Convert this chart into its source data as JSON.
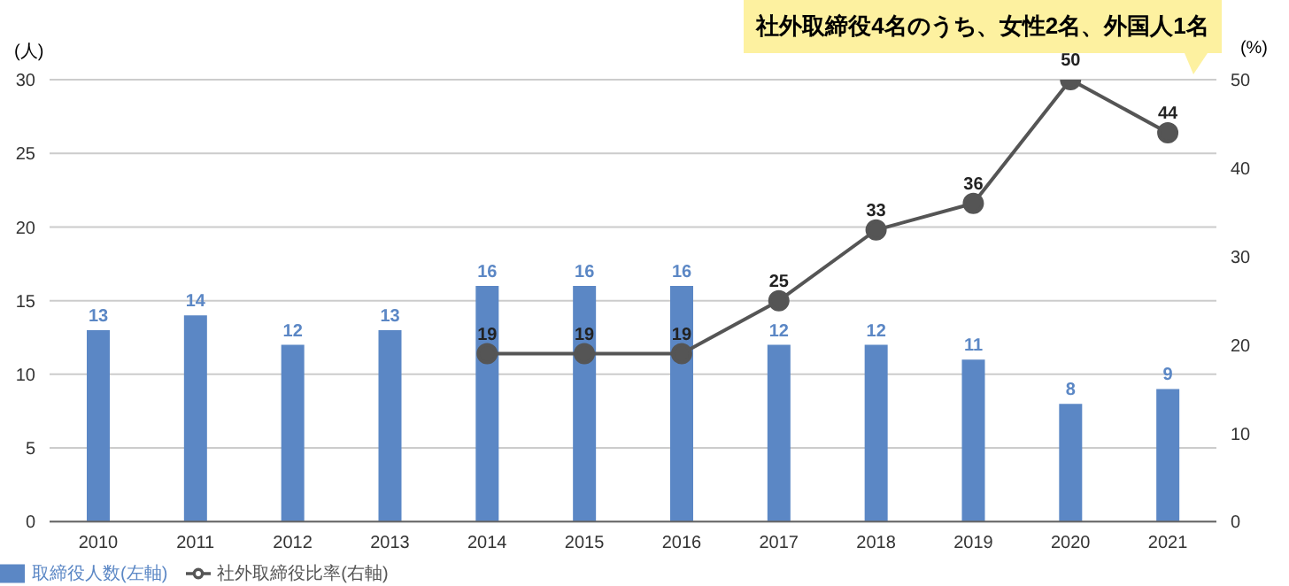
{
  "chart_data": {
    "type": "bar",
    "categories": [
      "2010",
      "2011",
      "2012",
      "2013",
      "2014",
      "2015",
      "2016",
      "2017",
      "2018",
      "2019",
      "2020",
      "2021"
    ],
    "series": [
      {
        "name": "取締役人数(左軸)",
        "color": "#5b87c5",
        "values": [
          13,
          14,
          12,
          13,
          16,
          16,
          16,
          12,
          12,
          11,
          8,
          9
        ]
      },
      {
        "name": "社外取締役比率(右軸)",
        "type": "line",
        "axis": "y2",
        "color": "#555555",
        "values": [
          null,
          null,
          null,
          null,
          19,
          19,
          19,
          25,
          33,
          36,
          50,
          44
        ]
      }
    ],
    "ylabel": "(人)",
    "y2label": "(%)",
    "ylim": [
      0,
      30
    ],
    "yticks": [
      0,
      5,
      10,
      15,
      20,
      25,
      30
    ],
    "y2lim": [
      0,
      50
    ],
    "y2ticks": [
      0,
      10,
      20,
      30,
      40,
      50
    ],
    "annotations": [
      "社外取締役4名のうち、女性2名、外国人1名"
    ],
    "data_labels": true,
    "grid": "y",
    "legend": "bottom left",
    "marker": "circle",
    "line_style": "solid"
  }
}
